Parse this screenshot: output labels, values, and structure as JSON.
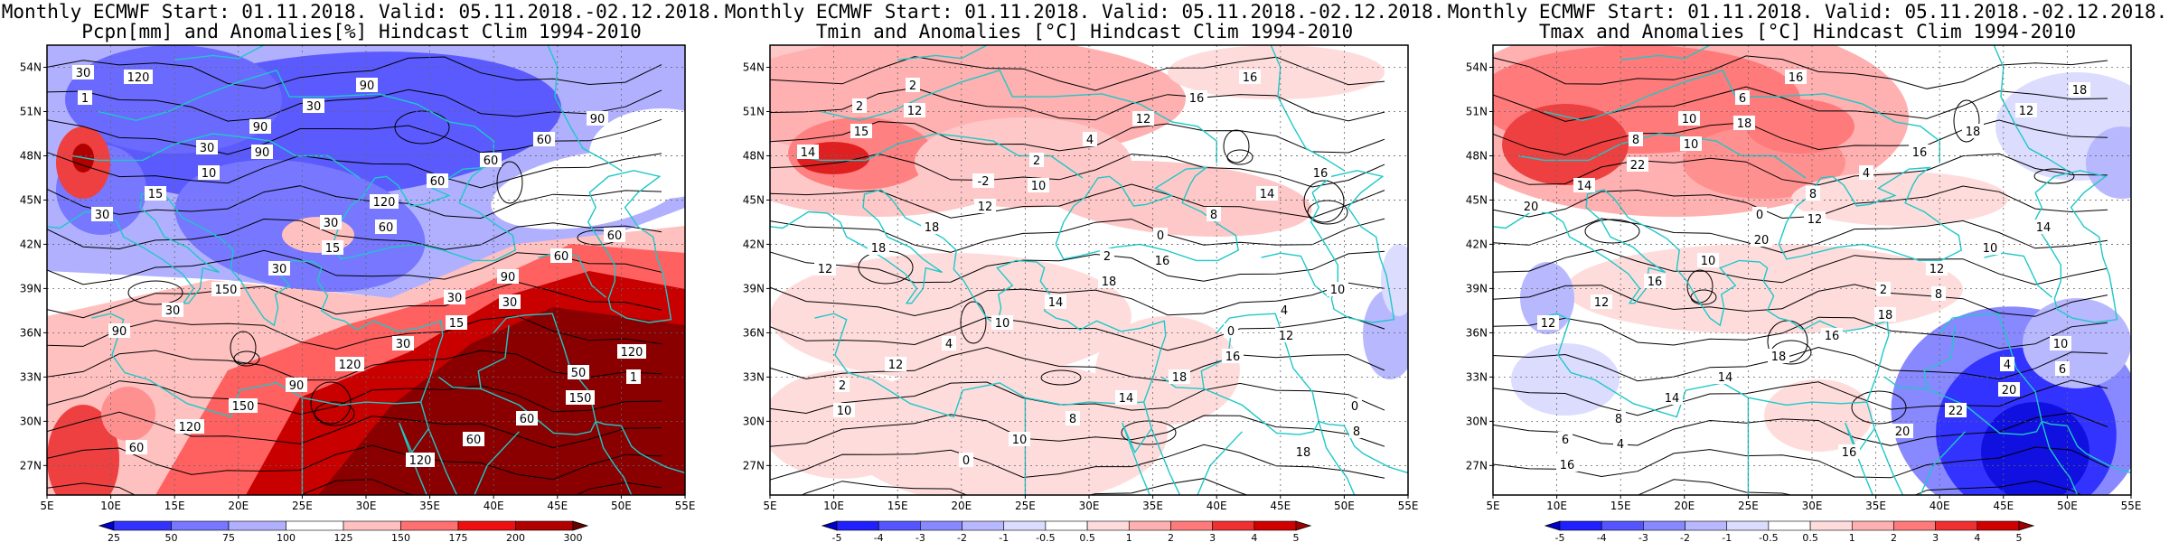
{
  "panels": [
    {
      "title_line1": "Monthly ECMWF Start: 01.11.2018. Valid: 05.11.2018.-02.12.2018.",
      "title_line2": "Pcpn[mm] and Anomalies[%] Hindcast Clim 1994-2010",
      "field": "precip",
      "colorbar": {
        "labels": [
          "25",
          "50",
          "75",
          "100",
          "125",
          "150",
          "175",
          "200",
          "300"
        ],
        "colors": [
          "#0000c8",
          "#3333ff",
          "#7777ff",
          "#b0b0ff",
          "#ffffff",
          "#ffc0c0",
          "#ff7070",
          "#ee1010",
          "#b00000",
          "#6a0000"
        ]
      },
      "contour_labels": [
        "30",
        "30",
        "30",
        "30",
        "50",
        "60",
        "90",
        "120",
        "90",
        "120",
        "120",
        "30",
        "60",
        "60",
        "90",
        "150",
        "90",
        "60",
        "60",
        "30",
        "90",
        "120",
        "60",
        "30",
        "150",
        "120",
        "60",
        "90",
        "15",
        "30",
        "30",
        "60",
        "1",
        "10",
        "15",
        "15",
        "150",
        "120",
        "90",
        "60",
        "30",
        "1"
      ]
    },
    {
      "title_line1": "Monthly ECMWF Start: 01.11.2018. Valid: 05.11.2018.-02.12.2018.",
      "title_line2": "Tmin and Anomalies [°C] Hindcast Clim 1994-2010",
      "field": "tmin",
      "colorbar": {
        "labels": [
          "-5",
          "-4",
          "-3",
          "-2",
          "-1",
          "-0.5",
          "0.5",
          "1",
          "2",
          "3",
          "4",
          "5"
        ],
        "colors": [
          "#0000c8",
          "#2020ff",
          "#5555ff",
          "#8888ff",
          "#b8b8ff",
          "#dcdcff",
          "#ffffff",
          "#ffdcdc",
          "#ffb0b0",
          "#ff7a7a",
          "#ee3030",
          "#d00000",
          "#a00000"
        ]
      },
      "contour_labels": [
        "2",
        "-2",
        "2",
        "0",
        "0",
        "2",
        "2",
        "0",
        "4",
        "2",
        "0",
        "4",
        "8",
        "10",
        "12",
        "10",
        "12",
        "14",
        "12",
        "4",
        "8",
        "16",
        "16",
        "18",
        "10",
        "14",
        "16",
        "14",
        "18",
        "14",
        "18",
        "18",
        "15",
        "12",
        "18",
        "16",
        "8",
        "12",
        "10",
        "16",
        "12",
        "10"
      ]
    },
    {
      "title_line1": "Monthly ECMWF Start: 01.11.2018. Valid: 05.11.2018.-02.12.2018.",
      "title_line2": "Tmax and Anomalies [°C] Hindcast Clim 1994-2010",
      "field": "tmax",
      "colorbar": {
        "labels": [
          "-5",
          "-4",
          "-3",
          "-2",
          "-1",
          "-0.5",
          "0.5",
          "1",
          "2",
          "3",
          "4",
          "5"
        ],
        "colors": [
          "#0000c8",
          "#2020ff",
          "#5555ff",
          "#8888ff",
          "#b8b8ff",
          "#dcdcff",
          "#ffffff",
          "#ffdcdc",
          "#ffb0b0",
          "#ff7a7a",
          "#ee3030",
          "#d00000",
          "#a00000"
        ]
      },
      "contour_labels": [
        "8",
        "0",
        "2",
        "4",
        "6",
        "10",
        "8",
        "12",
        "10",
        "8",
        "6",
        "4",
        "10",
        "12",
        "14",
        "16",
        "16",
        "14",
        "12",
        "14",
        "16",
        "18",
        "20",
        "16",
        "18",
        "20",
        "12",
        "14",
        "10",
        "16",
        "22",
        "18",
        "22",
        "20",
        "18",
        "20",
        "16",
        "10",
        "12",
        "8",
        "6",
        "4",
        "18"
      ]
    }
  ],
  "axes": {
    "lat_labels": [
      "54N",
      "51N",
      "48N",
      "45N",
      "42N",
      "39N",
      "36N",
      "33N",
      "30N",
      "27N"
    ],
    "lon_labels": [
      "5E",
      "10E",
      "15E",
      "20E",
      "25E",
      "30E",
      "35E",
      "40E",
      "45E",
      "50E",
      "55E"
    ],
    "lat_values": [
      54,
      51,
      48,
      45,
      42,
      39,
      36,
      33,
      30,
      27
    ],
    "lon_values": [
      5,
      10,
      15,
      20,
      25,
      30,
      35,
      40,
      45,
      50,
      55
    ],
    "lat_range": [
      25,
      55.5
    ],
    "lon_range": [
      5,
      55
    ]
  },
  "colors": {
    "coastline": "#1ec8c8",
    "contour": "#000000",
    "grid": "#666666"
  }
}
